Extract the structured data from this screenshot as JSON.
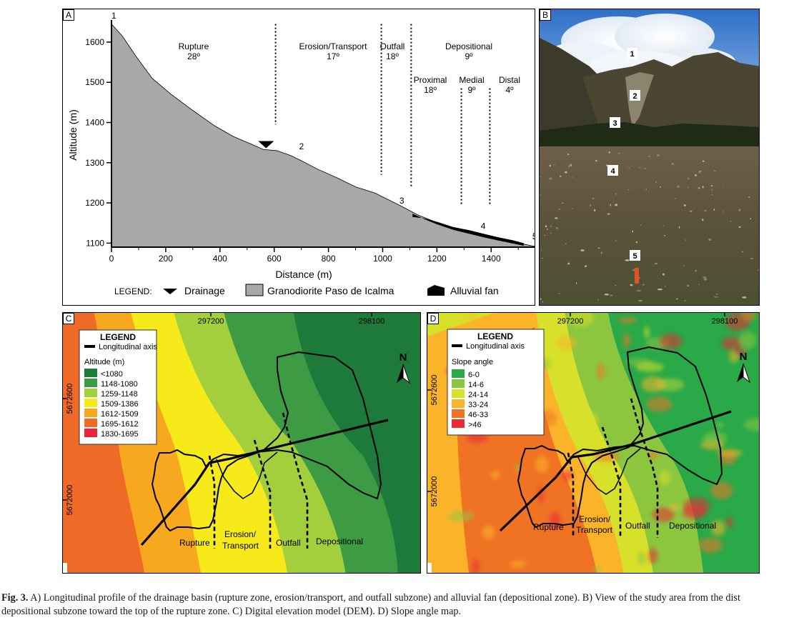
{
  "panel_a": {
    "label": "A",
    "chart_data": {
      "type": "area",
      "xlabel": "Distance (m)",
      "ylabel": "Altitude (m)",
      "xlim": [
        0,
        1560
      ],
      "ylim": [
        1090,
        1655
      ],
      "xticks": [
        "0",
        "200",
        "400",
        "600",
        "800",
        "1000",
        "1200",
        "1400"
      ],
      "yticks": [
        "1100",
        "1200",
        "1300",
        "1400",
        "1500",
        "1600"
      ],
      "profile": [
        [
          0,
          1645
        ],
        [
          40,
          1615
        ],
        [
          90,
          1565
        ],
        [
          150,
          1510
        ],
        [
          220,
          1470
        ],
        [
          300,
          1430
        ],
        [
          380,
          1392
        ],
        [
          450,
          1365
        ],
        [
          520,
          1345
        ],
        [
          560,
          1333
        ],
        [
          610,
          1330
        ],
        [
          660,
          1318
        ],
        [
          700,
          1305
        ],
        [
          760,
          1284
        ],
        [
          830,
          1263
        ],
        [
          900,
          1240
        ],
        [
          970,
          1225
        ],
        [
          1030,
          1205
        ],
        [
          1080,
          1188
        ],
        [
          1130,
          1170
        ],
        [
          1175,
          1158
        ],
        [
          1220,
          1145
        ],
        [
          1280,
          1133
        ],
        [
          1340,
          1124
        ],
        [
          1400,
          1114
        ],
        [
          1460,
          1106
        ],
        [
          1510,
          1099
        ],
        [
          1560,
          1092
        ]
      ],
      "fan_top": [
        [
          1110,
          1165
        ],
        [
          1150,
          1162
        ],
        [
          1200,
          1153
        ],
        [
          1260,
          1140
        ],
        [
          1320,
          1132
        ],
        [
          1380,
          1122
        ],
        [
          1430,
          1114
        ],
        [
          1480,
          1107
        ],
        [
          1520,
          1100
        ]
      ],
      "drainage_marker": [
        570,
        1336
      ],
      "dividers_x": [
        605,
        995,
        1105,
        1290,
        1395
      ],
      "zones": [
        {
          "name": "Rupture",
          "angle": "28º",
          "x": 305
        },
        {
          "name": "Erosion/Transport",
          "angle": "17º",
          "x": 815
        },
        {
          "name": "Outfall",
          "angle": "18º",
          "x": 1050
        }
      ],
      "depositional": {
        "name": "Depositional",
        "angle": "9º"
      },
      "subzones": [
        {
          "name": "Proximal",
          "angle": "18º"
        },
        {
          "name": "Medial",
          "angle": "9º"
        },
        {
          "name": "Distal",
          "angle": "4º"
        }
      ],
      "points": [
        {
          "label": "1",
          "x": 0,
          "y": 1655
        },
        {
          "label": "2",
          "x": 660,
          "y": 1330
        },
        {
          "label": "3",
          "x": 1030,
          "y": 1195
        },
        {
          "label": "4",
          "x": 1330,
          "y": 1132
        },
        {
          "label": "5",
          "x": 1520,
          "y": 1106
        }
      ]
    },
    "legend": {
      "title": "LEGEND:",
      "items": [
        "Drainage",
        "Granodiorite Paso de Icalma",
        "Alluvial fan"
      ]
    }
  },
  "panel_b": {
    "label": "B",
    "markers": [
      "1",
      "2",
      "3",
      "4",
      "5"
    ]
  },
  "panel_c": {
    "label": "C",
    "x_coords": [
      "297200",
      "298100"
    ],
    "y_coords": [
      "5672600",
      "5672000"
    ],
    "legend_title": "LEGEND",
    "axis_item": "Longitudinal axis",
    "scale_title": "Altitude (m)",
    "classes": [
      {
        "label": "<1080",
        "color": "#1e7a3a"
      },
      {
        "label": "1148-1080",
        "color": "#3d9b43"
      },
      {
        "label": "1259-1148",
        "color": "#a3cf3c"
      },
      {
        "label": "1509-1386",
        "color": "#f7ea1a"
      },
      {
        "label": "1612-1509",
        "color": "#f7a81f"
      },
      {
        "label": "1695-1612",
        "color": "#ef6a26"
      },
      {
        "label": "1830-1695",
        "color": "#e8233a"
      }
    ],
    "zones": [
      "Rupture",
      "Erosion/",
      "Transport",
      "Outfall",
      "Depositional"
    ],
    "north": "N"
  },
  "panel_d": {
    "label": "D",
    "x_coords": [
      "297200",
      "298100"
    ],
    "y_coords": [
      "5672600",
      "5672000"
    ],
    "legend_title": "LEGEND",
    "axis_item": "Longitudinal axis",
    "scale_title": "Slope angle",
    "classes": [
      {
        "label": "6-0",
        "color": "#2aa948"
      },
      {
        "label": "14-6",
        "color": "#8cc63f"
      },
      {
        "label": "24-14",
        "color": "#d7e02a"
      },
      {
        "label": "33-24",
        "color": "#fbb42a"
      },
      {
        "label": "46-33",
        "color": "#f07324"
      },
      {
        "label": ">46",
        "color": "#ea2a35"
      }
    ],
    "zones": [
      "Rupture",
      "Erosion/",
      "Transport",
      "Outfall",
      "Depositional"
    ],
    "north": "N"
  },
  "caption": {
    "fig": "Fig. 3.",
    "line1": "A) Longitudinal profile of the drainage basin (rupture zone, erosion/transport, and outfall subzone) and alluvial fan (depositional zone). B) View of the study area from the dist",
    "line2": "depositional subzone toward the top of the rupture zone. C) Digital elevation model (DEM). D) Slope angle map."
  }
}
